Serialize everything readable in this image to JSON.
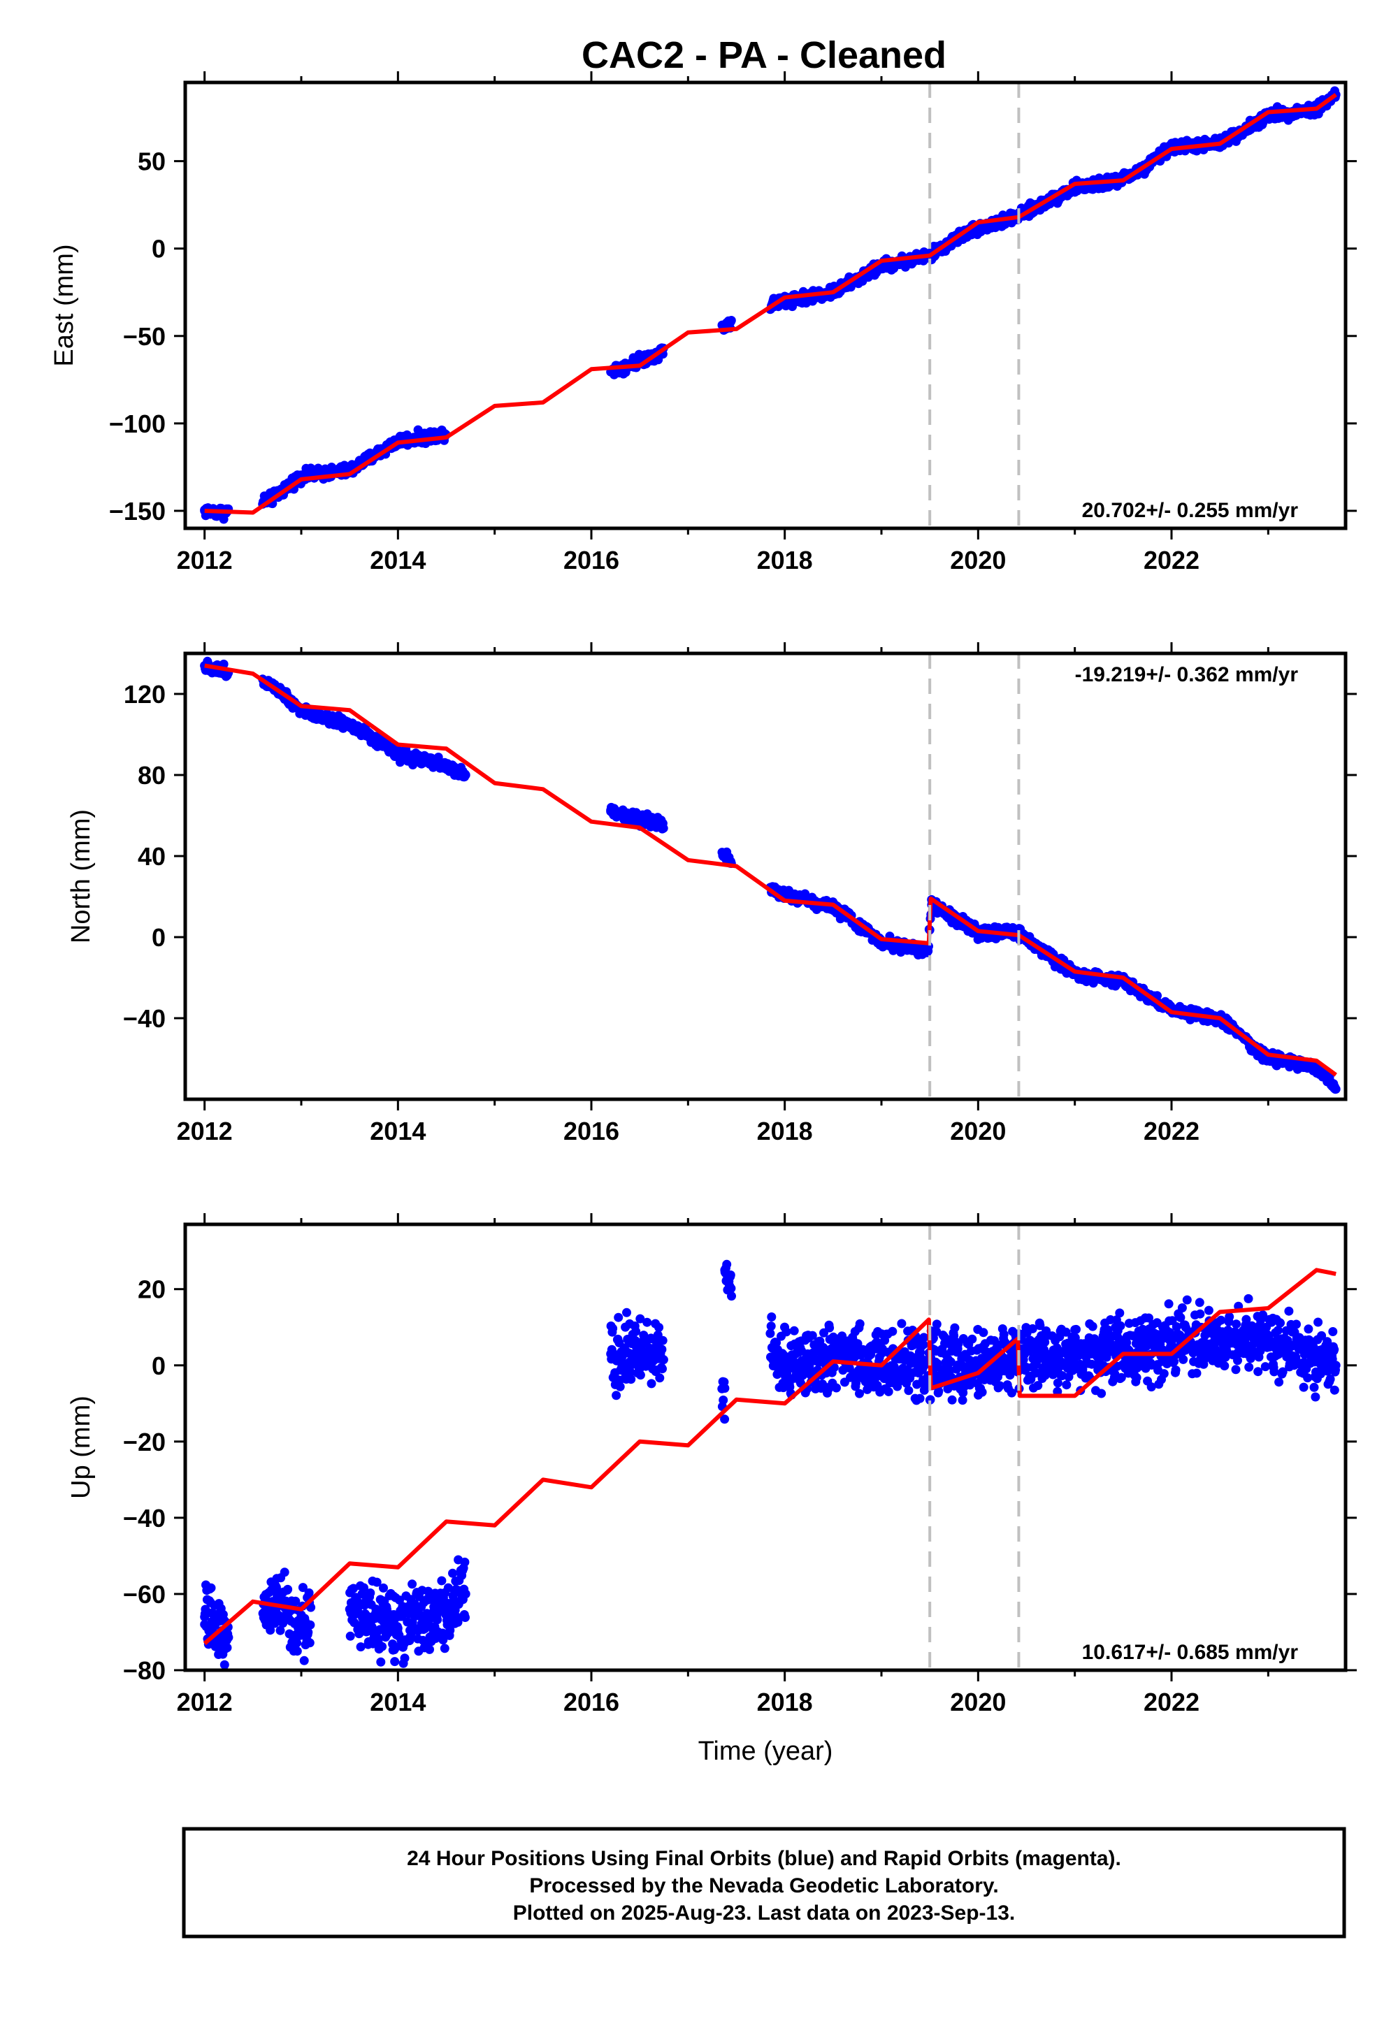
{
  "title": "CAC2  - PA - Cleaned",
  "colors": {
    "final_orbits": "#0000ff",
    "model": "#ff0000",
    "offset_lines": "#c0c0c0",
    "frame": "#000000"
  },
  "footer": {
    "line1": "24 Hour Positions Using Final Orbits (blue) and Rapid Orbits (magenta).",
    "line2": "Processed by the Nevada Geodetic Laboratory.",
    "line3": "Plotted on 2025-Aug-23. Last data on 2023-Sep-13."
  },
  "chart_data": [
    {
      "type": "scatter",
      "component": "east",
      "ylabel": "East (mm)",
      "xlabel": "",
      "xlim": [
        2011.8,
        2023.8
      ],
      "ylim": [
        -160,
        95
      ],
      "xticks": [
        2012,
        2014,
        2016,
        2018,
        2020,
        2022
      ],
      "yticks": [
        -150,
        -100,
        -50,
        0,
        50
      ],
      "ytick_labels": [
        "−150",
        "−100",
        "−50",
        "0",
        "50"
      ],
      "rate_text": "20.702+/- 0.255 mm/yr",
      "rate_position": "bottom-right",
      "offsets": [
        2019.5,
        2020.42
      ],
      "grid": false,
      "series": [
        {
          "name": "",
          "kind": "observations",
          "gaps": [
            [
              2012.25,
              2012.6
            ],
            [
              2014.5,
              2016.2
            ],
            [
              2016.75,
              2017.35
            ],
            [
              2017.45,
              2017.85
            ]
          ],
          "points": [
            [
              2012.0,
              -150
            ],
            [
              2012.2,
              -151
            ],
            [
              2012.7,
              -143
            ],
            [
              2013.0,
              -130
            ],
            [
              2013.5,
              -127
            ],
            [
              2014.0,
              -110
            ],
            [
              2014.4,
              -107
            ],
            [
              2016.3,
              -68
            ],
            [
              2016.6,
              -62
            ],
            [
              2017.38,
              -44
            ],
            [
              2017.95,
              -30
            ],
            [
              2018.5,
              -25
            ],
            [
              2019.0,
              -10
            ],
            [
              2019.5,
              -4
            ],
            [
              2019.9,
              10
            ],
            [
              2020.4,
              18
            ],
            [
              2021.0,
              35
            ],
            [
              2021.4,
              38
            ],
            [
              2021.7,
              45
            ],
            [
              2022.0,
              58
            ],
            [
              2022.5,
              60
            ],
            [
              2023.0,
              76
            ],
            [
              2023.5,
              80
            ],
            [
              2023.7,
              88
            ]
          ]
        },
        {
          "name": "",
          "kind": "model",
          "points": [
            [
              2012.0,
              -150
            ],
            [
              2012.5,
              -151
            ],
            [
              2013.0,
              -132
            ],
            [
              2013.5,
              -129
            ],
            [
              2014.0,
              -111
            ],
            [
              2014.5,
              -108
            ],
            [
              2015.0,
              -90
            ],
            [
              2015.5,
              -88
            ],
            [
              2016.0,
              -69
            ],
            [
              2016.5,
              -67
            ],
            [
              2017.0,
              -48
            ],
            [
              2017.5,
              -46
            ],
            [
              2018.0,
              -28
            ],
            [
              2018.5,
              -25
            ],
            [
              2019.0,
              -7
            ],
            [
              2019.5,
              -4
            ],
            [
              2020.0,
              15
            ],
            [
              2020.42,
              18
            ],
            [
              2021.0,
              37
            ],
            [
              2021.5,
              39
            ],
            [
              2022.0,
              57
            ],
            [
              2022.5,
              60
            ],
            [
              2023.0,
              78
            ],
            [
              2023.5,
              80
            ],
            [
              2023.7,
              88
            ]
          ]
        }
      ]
    },
    {
      "type": "scatter",
      "component": "north",
      "ylabel": "North (mm)",
      "xlabel": "",
      "xlim": [
        2011.8,
        2023.8
      ],
      "ylim": [
        -80,
        140
      ],
      "xticks": [
        2012,
        2014,
        2016,
        2018,
        2020,
        2022
      ],
      "yticks": [
        -40,
        0,
        40,
        80,
        120
      ],
      "ytick_labels": [
        "−40",
        "0",
        "40",
        "80",
        "120"
      ],
      "rate_text": "-19.219+/- 0.362 mm/yr",
      "rate_position": "top-right",
      "offsets": [
        2019.5,
        2020.42
      ],
      "grid": false,
      "series": [
        {
          "name": "",
          "kind": "observations",
          "gaps": [
            [
              2012.25,
              2012.6
            ],
            [
              2014.7,
              2016.2
            ],
            [
              2016.75,
              2017.35
            ],
            [
              2017.45,
              2017.85
            ]
          ],
          "points": [
            [
              2012.0,
              134
            ],
            [
              2012.2,
              131
            ],
            [
              2012.7,
              125
            ],
            [
              2013.0,
              112
            ],
            [
              2013.5,
              105
            ],
            [
              2014.0,
              90
            ],
            [
              2014.4,
              86
            ],
            [
              2014.7,
              80
            ],
            [
              2016.2,
              62
            ],
            [
              2016.7,
              56
            ],
            [
              2017.38,
              40
            ],
            [
              2017.95,
              22
            ],
            [
              2018.5,
              15
            ],
            [
              2019.0,
              -2
            ],
            [
              2019.48,
              -7
            ],
            [
              2019.52,
              16
            ],
            [
              2020.0,
              2
            ],
            [
              2020.42,
              2
            ],
            [
              2021.0,
              -18
            ],
            [
              2021.5,
              -22
            ],
            [
              2022.0,
              -36
            ],
            [
              2022.5,
              -40
            ],
            [
              2023.0,
              -60
            ],
            [
              2023.5,
              -64
            ],
            [
              2023.7,
              -75
            ]
          ]
        },
        {
          "name": "",
          "kind": "model",
          "points": [
            [
              2012.0,
              134
            ],
            [
              2012.5,
              130
            ],
            [
              2013.0,
              114
            ],
            [
              2013.5,
              112
            ],
            [
              2014.0,
              95
            ],
            [
              2014.5,
              93
            ],
            [
              2015.0,
              76
            ],
            [
              2015.5,
              73
            ],
            [
              2016.0,
              57
            ],
            [
              2016.5,
              54
            ],
            [
              2017.0,
              38
            ],
            [
              2017.5,
              35
            ],
            [
              2018.0,
              18
            ],
            [
              2018.5,
              16
            ],
            [
              2019.0,
              -1
            ],
            [
              2019.49,
              -3
            ],
            [
              2019.51,
              19
            ],
            [
              2020.0,
              3
            ],
            [
              2020.42,
              1
            ],
            [
              2021.0,
              -17
            ],
            [
              2021.5,
              -20
            ],
            [
              2022.0,
              -37
            ],
            [
              2022.5,
              -40
            ],
            [
              2023.0,
              -58
            ],
            [
              2023.5,
              -61
            ],
            [
              2023.7,
              -68
            ]
          ]
        }
      ]
    },
    {
      "type": "scatter",
      "component": "up",
      "ylabel": "Up (mm)",
      "xlabel": "Time (year)",
      "xlim": [
        2011.8,
        2023.8
      ],
      "ylim": [
        -80,
        37
      ],
      "xticks": [
        2012,
        2014,
        2016,
        2018,
        2020,
        2022
      ],
      "yticks": [
        -80,
        -60,
        -40,
        -20,
        0,
        20
      ],
      "ytick_labels": [
        "−80",
        "−60",
        "−40",
        "−20",
        "0",
        "20"
      ],
      "rate_text": "10.617+/- 0.685 mm/yr",
      "rate_position": "bottom-right",
      "offsets": [
        2019.5,
        2020.42
      ],
      "grid": false,
      "series": [
        {
          "name": "",
          "kind": "observations",
          "gaps": [
            [
              2012.25,
              2012.6
            ],
            [
              2013.1,
              2013.5
            ],
            [
              2014.7,
              2016.2
            ],
            [
              2016.75,
              2017.35
            ],
            [
              2017.45,
              2017.85
            ]
          ],
          "points": [
            [
              2012.0,
              -66
            ],
            [
              2012.2,
              -70
            ],
            [
              2012.7,
              -62
            ],
            [
              2013.0,
              -68
            ],
            [
              2013.5,
              -64
            ],
            [
              2014.0,
              -69
            ],
            [
              2014.4,
              -66
            ],
            [
              2014.7,
              -60
            ],
            [
              2016.2,
              3
            ],
            [
              2016.7,
              4
            ],
            [
              2017.38,
              -6
            ],
            [
              2017.38,
              25
            ],
            [
              2017.95,
              0
            ],
            [
              2018.5,
              2
            ],
            [
              2019.0,
              0
            ],
            [
              2019.48,
              1
            ],
            [
              2020.0,
              0
            ],
            [
              2020.42,
              2
            ],
            [
              2021.0,
              3
            ],
            [
              2021.5,
              3
            ],
            [
              2022.0,
              6
            ],
            [
              2022.5,
              7
            ],
            [
              2023.0,
              7
            ],
            [
              2023.5,
              2
            ],
            [
              2023.7,
              0
            ]
          ]
        },
        {
          "name": "",
          "kind": "model",
          "points": [
            [
              2012.0,
              -73
            ],
            [
              2012.5,
              -62
            ],
            [
              2013.0,
              -64
            ],
            [
              2013.5,
              -52
            ],
            [
              2014.0,
              -53
            ],
            [
              2014.5,
              -41
            ],
            [
              2015.0,
              -42
            ],
            [
              2015.5,
              -30
            ],
            [
              2016.0,
              -32
            ],
            [
              2016.5,
              -20
            ],
            [
              2017.0,
              -21
            ],
            [
              2017.5,
              -9
            ],
            [
              2018.0,
              -10
            ],
            [
              2018.5,
              1
            ],
            [
              2019.0,
              0
            ],
            [
              2019.49,
              12
            ],
            [
              2019.51,
              -6
            ],
            [
              2020.0,
              -2
            ],
            [
              2020.41,
              7
            ],
            [
              2020.43,
              -8
            ],
            [
              2021.0,
              -8
            ],
            [
              2021.5,
              3
            ],
            [
              2022.0,
              3
            ],
            [
              2022.5,
              14
            ],
            [
              2023.0,
              15
            ],
            [
              2023.5,
              25
            ],
            [
              2023.7,
              24
            ]
          ]
        }
      ]
    }
  ]
}
